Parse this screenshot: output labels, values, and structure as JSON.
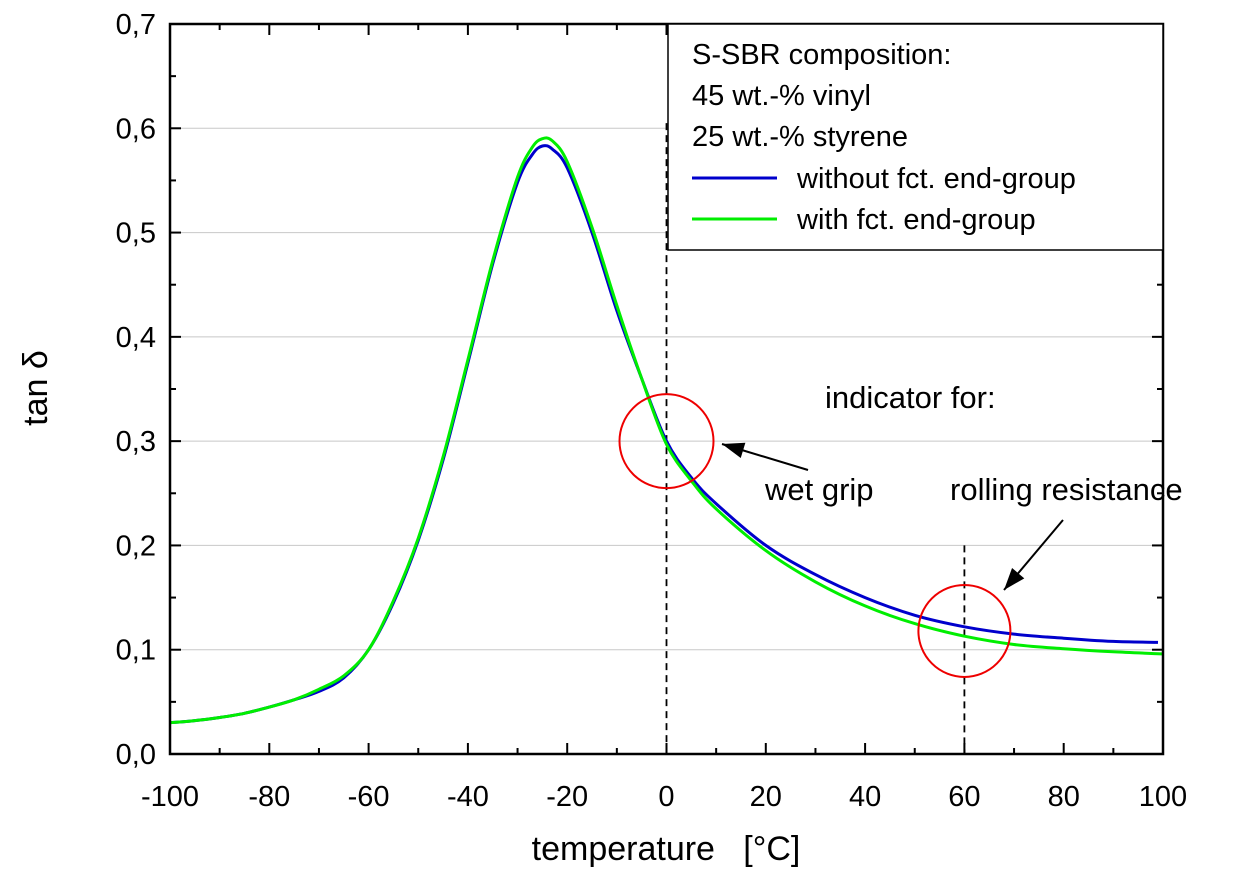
{
  "chart_data": {
    "type": "line",
    "xlabel": "temperature   [°C]",
    "ylabel": "tan δ",
    "xlim": [
      -100,
      100
    ],
    "ylim": [
      0.0,
      0.7
    ],
    "x_ticks": [
      "-100",
      "-80",
      "-60",
      "-40",
      "-20",
      "0",
      "20",
      "40",
      "60",
      "80",
      "100"
    ],
    "y_ticks": [
      "0,0",
      "0,1",
      "0,2",
      "0,3",
      "0,4",
      "0,5",
      "0,6",
      "0,7"
    ],
    "grid": "horizontal",
    "legend": {
      "placement": "top-right",
      "header": [
        "S-SBR composition:",
        "45 wt.-% vinyl",
        "25 wt.-% styrene"
      ]
    },
    "series": [
      {
        "name": "without fct. end-group",
        "color": "#0000cc",
        "x": [
          -100,
          -95,
          -90,
          -85,
          -80,
          -75,
          -70,
          -65,
          -60,
          -55,
          -50,
          -45,
          -40,
          -35,
          -30,
          -27,
          -25,
          -23,
          -20,
          -15,
          -10,
          -5,
          0,
          5,
          10,
          20,
          30,
          40,
          50,
          60,
          70,
          80,
          90,
          99
        ],
        "y": [
          0.03,
          0.032,
          0.035,
          0.039,
          0.045,
          0.052,
          0.06,
          0.073,
          0.1,
          0.145,
          0.205,
          0.282,
          0.375,
          0.47,
          0.548,
          0.575,
          0.583,
          0.58,
          0.562,
          0.5,
          0.425,
          0.36,
          0.3,
          0.265,
          0.24,
          0.2,
          0.172,
          0.15,
          0.133,
          0.122,
          0.115,
          0.111,
          0.108,
          0.107
        ]
      },
      {
        "name": "with fct. end-group",
        "color": "#00ee00",
        "x": [
          -100,
          -95,
          -90,
          -85,
          -80,
          -75,
          -70,
          -65,
          -60,
          -55,
          -50,
          -45,
          -40,
          -35,
          -30,
          -27,
          -25,
          -23,
          -20,
          -15,
          -10,
          -5,
          0,
          5,
          10,
          20,
          30,
          40,
          50,
          60,
          70,
          80,
          90,
          100
        ],
        "y": [
          0.03,
          0.032,
          0.035,
          0.039,
          0.045,
          0.052,
          0.062,
          0.075,
          0.1,
          0.147,
          0.207,
          0.285,
          0.378,
          0.473,
          0.553,
          0.582,
          0.59,
          0.588,
          0.568,
          0.505,
          0.43,
          0.36,
          0.297,
          0.262,
          0.235,
          0.195,
          0.165,
          0.142,
          0.125,
          0.113,
          0.105,
          0.101,
          0.098,
          0.096
        ]
      }
    ],
    "reference_lines": [
      {
        "x": 0,
        "style": "dashed"
      },
      {
        "x": 60,
        "style": "dashed"
      }
    ],
    "annotations": {
      "header": "indicator for:",
      "markers": [
        {
          "label": "wet grip",
          "x": 0,
          "y": 0.3,
          "circle_color": "#ee0000"
        },
        {
          "label": "rolling resistance",
          "x": 60,
          "y": 0.118,
          "circle_color": "#ee0000"
        }
      ]
    }
  }
}
